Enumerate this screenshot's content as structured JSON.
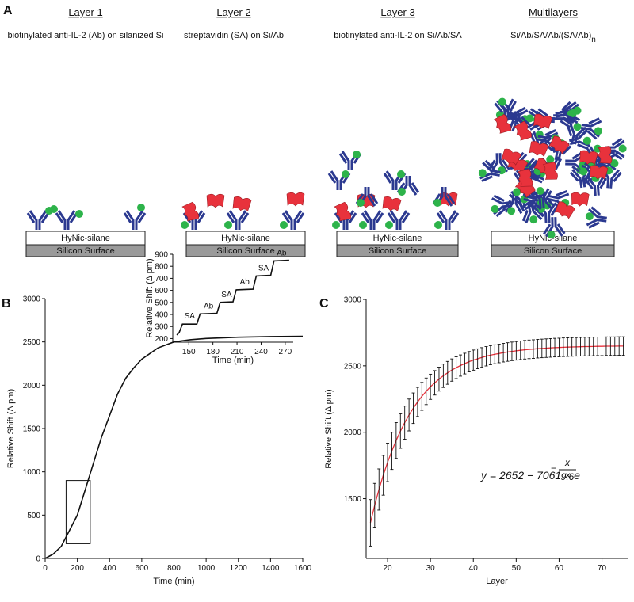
{
  "panel_labels": {
    "a": "A",
    "b": "B",
    "c": "C"
  },
  "layers": [
    {
      "title": "Layer 1",
      "subtitle": "biotinylated anti-IL-2 (Ab) on silanized Si",
      "coating": "HyNic-silane",
      "substrate": "Silicon Surface"
    },
    {
      "title": "Layer 2",
      "subtitle": "streptavidin (SA) on Si/Ab",
      "coating": "HyNic-silane",
      "substrate": "Silicon Surface"
    },
    {
      "title": "Layer 3",
      "subtitle": "biotinylated anti-IL-2 on Si/Ab/SA",
      "coating": "HyNic-silane",
      "substrate": "Silicon Surface"
    },
    {
      "title": "Multilayers",
      "subtitle": "Si/Ab/SA/Ab/(SA/Ab)",
      "subscript": "n",
      "coating": "HyNic-silane",
      "substrate": "Silicon Surface"
    }
  ],
  "chart_data": [
    {
      "type": "line",
      "x_label": "Time (min)",
      "y_label": "Relative Shift (Δ pm)",
      "color": "#111111",
      "x": [
        0,
        50,
        100,
        150,
        200,
        250,
        300,
        350,
        400,
        450,
        500,
        550,
        600,
        700,
        800,
        900,
        1000,
        1200,
        1400,
        1600
      ],
      "values": [
        0,
        50,
        140,
        320,
        500,
        800,
        1100,
        1400,
        1650,
        1900,
        2080,
        2200,
        2300,
        2430,
        2500,
        2525,
        2540,
        2555,
        2562,
        2565
      ],
      "xlim": [
        0,
        1600
      ],
      "xticks": [
        0,
        200,
        400,
        600,
        800,
        1000,
        1200,
        1400,
        1600
      ],
      "ylim": [
        0,
        3000
      ],
      "yticks": [
        0,
        500,
        1000,
        1500,
        2000,
        2500,
        3000
      ]
    },
    {
      "type": "line",
      "x_label": "Time (min)",
      "y_label": "Relative Shift (Δ pm)",
      "color": "#111111",
      "x": [
        135,
        138,
        142,
        160,
        164,
        185,
        189,
        205,
        209,
        230,
        234,
        252,
        256,
        275
      ],
      "values": [
        230,
        250,
        320,
        320,
        405,
        410,
        500,
        505,
        605,
        610,
        720,
        725,
        845,
        850
      ],
      "annotations": [
        "SA",
        "Ab",
        "SA",
        "Ab",
        "SA",
        "Ab"
      ],
      "xlim": [
        130,
        280
      ],
      "xticks": [
        150,
        180,
        210,
        240,
        270
      ],
      "ylim": [
        170,
        900
      ],
      "yticks": [
        200,
        300,
        400,
        500,
        600,
        700,
        800,
        900
      ]
    },
    {
      "type": "errorbar",
      "x_label": "Layer",
      "y_label": "Relative Shift (Δ pm)",
      "color": "#e8323c",
      "errorbar_color": "#111111",
      "equation_main": "y = 2652 − 7061 × e",
      "equation_exp_sign": "−",
      "equation_exp_num": "x",
      "equation_exp_den": "9.6",
      "x": [
        16,
        17,
        18,
        19,
        20,
        21,
        22,
        23,
        24,
        25,
        26,
        27,
        28,
        29,
        30,
        31,
        32,
        33,
        34,
        35,
        36,
        37,
        38,
        39,
        40,
        41,
        42,
        43,
        44,
        45,
        46,
        47,
        48,
        49,
        50,
        51,
        52,
        53,
        54,
        55,
        56,
        57,
        58,
        59,
        60,
        61,
        62,
        63,
        64,
        65,
        66,
        67,
        68,
        69,
        70,
        71,
        72,
        73,
        74,
        75
      ],
      "values": [
        1318,
        1450,
        1569,
        1676,
        1773,
        1860,
        1938,
        2009,
        2072,
        2130,
        2181,
        2228,
        2270,
        2308,
        2342,
        2372,
        2400,
        2425,
        2447,
        2468,
        2486,
        2502,
        2517,
        2531,
        2543,
        2553,
        2563,
        2572,
        2580,
        2587,
        2593,
        2599,
        2604,
        2609,
        2613,
        2617,
        2621,
        2624,
        2626,
        2629,
        2631,
        2633,
        2635,
        2637,
        2638,
        2640,
        2641,
        2642,
        2643,
        2644,
        2645,
        2645,
        2646,
        2647,
        2647,
        2648,
        2648,
        2648,
        2649,
        2649
      ],
      "errors": [
        175,
        165,
        155,
        150,
        145,
        140,
        135,
        130,
        125,
        120,
        115,
        110,
        105,
        100,
        95,
        92,
        90,
        88,
        86,
        84,
        82,
        80,
        78,
        77,
        76,
        75,
        74,
        73,
        72,
        71,
        70,
        70,
        70,
        70,
        70,
        70,
        70,
        70,
        70,
        70,
        70,
        70,
        70,
        70,
        70,
        70,
        70,
        70,
        70,
        70,
        70,
        70,
        70,
        70,
        70,
        70,
        70,
        70,
        70,
        70
      ],
      "xlim": [
        15,
        76
      ],
      "xticks": [
        20,
        30,
        40,
        50,
        60,
        70
      ],
      "ylim": [
        1050,
        3000
      ],
      "yticks": [
        1500,
        2000,
        2500,
        3000
      ]
    }
  ]
}
